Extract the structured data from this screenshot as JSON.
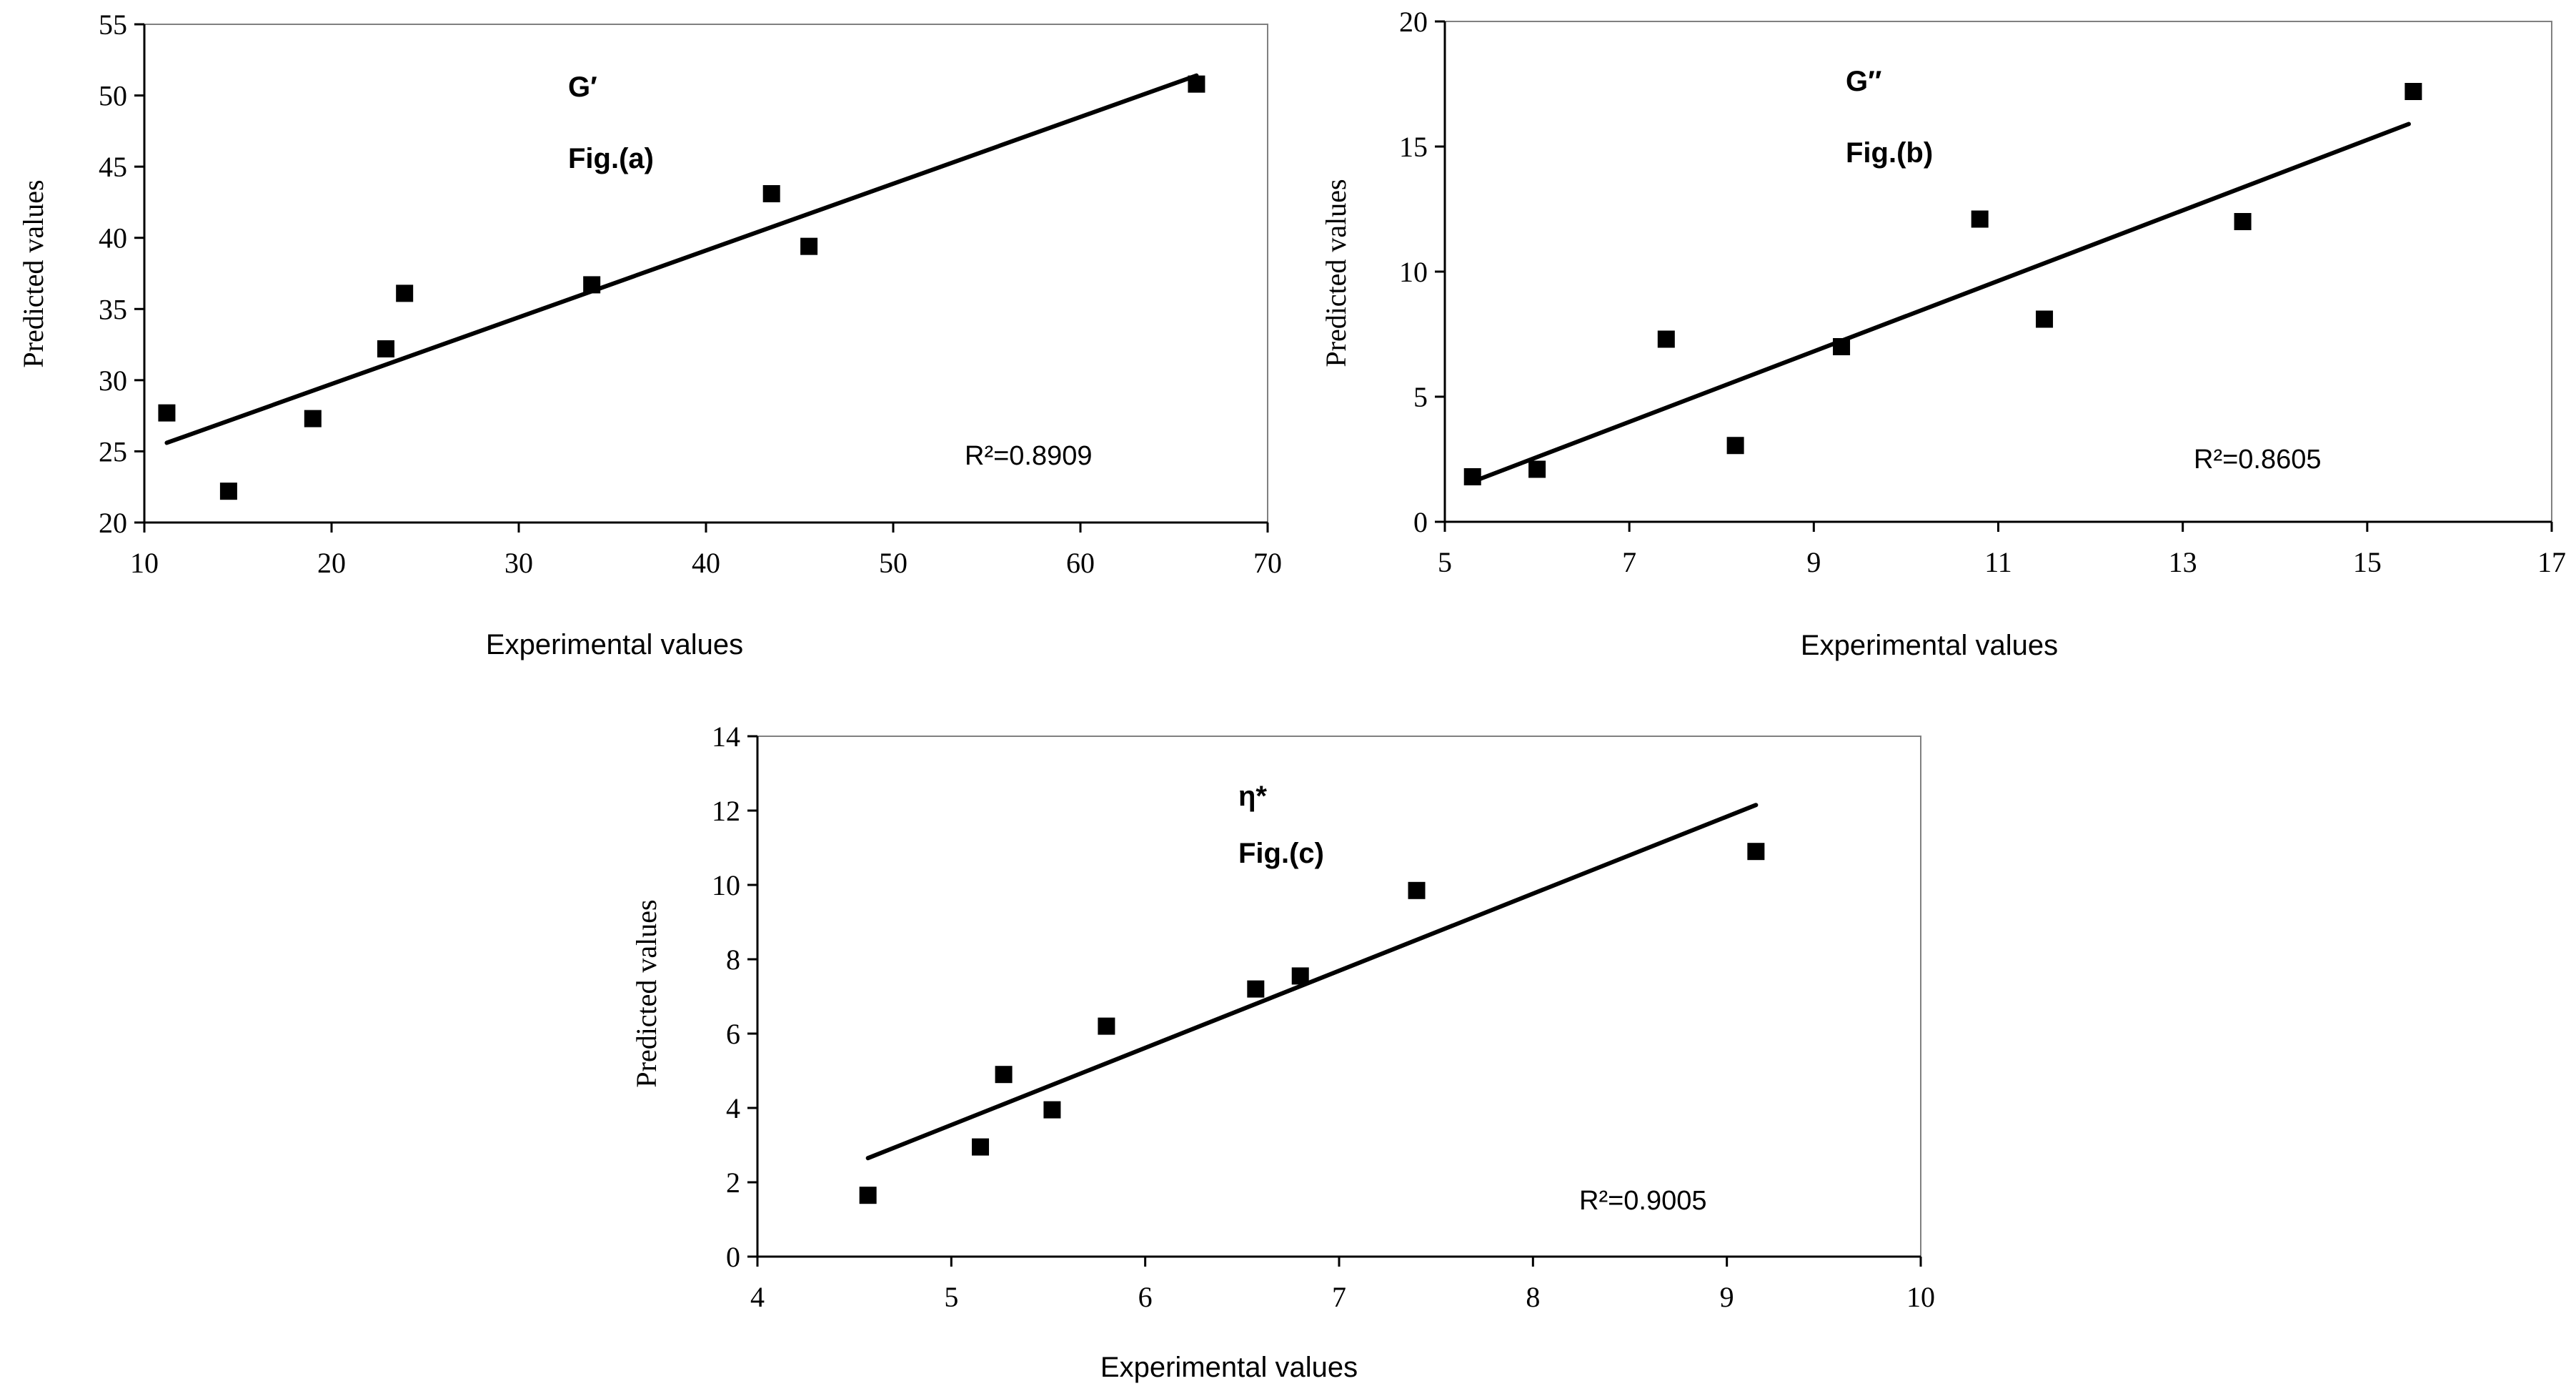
{
  "chart_data": [
    {
      "type": "scatter",
      "panel": "a",
      "xlabel": "Experimental values",
      "ylabel": "Predicted values",
      "xlim": [
        10,
        70
      ],
      "ylim": [
        20,
        55
      ],
      "xticks": [
        10,
        20,
        30,
        40,
        50,
        60,
        70
      ],
      "yticks": [
        20,
        25,
        30,
        35,
        40,
        45,
        50,
        55
      ],
      "annotation_title": "G′",
      "annotation_fig": "Fig.(a)",
      "r2_text": "R²=0.8909",
      "points": [
        {
          "x": 11.2,
          "y": 27.7
        },
        {
          "x": 14.5,
          "y": 22.2
        },
        {
          "x": 19.0,
          "y": 27.3
        },
        {
          "x": 22.9,
          "y": 32.2
        },
        {
          "x": 23.9,
          "y": 36.1
        },
        {
          "x": 33.9,
          "y": 36.7
        },
        {
          "x": 43.5,
          "y": 43.1
        },
        {
          "x": 45.5,
          "y": 39.4
        },
        {
          "x": 66.2,
          "y": 50.8
        }
      ],
      "trendline": [
        [
          11.2,
          25.6
        ],
        [
          66.2,
          51.4
        ]
      ]
    },
    {
      "type": "scatter",
      "panel": "b",
      "xlabel": "Experimental values",
      "ylabel": "Predicted values",
      "xlim": [
        5,
        17
      ],
      "ylim": [
        0,
        20
      ],
      "xticks": [
        5,
        7,
        9,
        11,
        13,
        15,
        17
      ],
      "yticks": [
        0,
        5,
        10,
        15,
        20
      ],
      "annotation_title": "G′′",
      "annotation_fig": "Fig.(b)",
      "r2_text": "R²=0.8605",
      "points": [
        {
          "x": 5.3,
          "y": 1.8
        },
        {
          "x": 6.0,
          "y": 2.1
        },
        {
          "x": 7.4,
          "y": 7.3
        },
        {
          "x": 8.15,
          "y": 3.05
        },
        {
          "x": 9.3,
          "y": 7.0
        },
        {
          "x": 10.8,
          "y": 12.1
        },
        {
          "x": 11.5,
          "y": 8.1
        },
        {
          "x": 13.65,
          "y": 12.0
        },
        {
          "x": 15.5,
          "y": 17.2
        }
      ],
      "trendline": [
        [
          5.3,
          1.6
        ],
        [
          15.45,
          15.9
        ]
      ]
    },
    {
      "type": "scatter",
      "panel": "c",
      "xlabel": "Experimental values",
      "ylabel": "Predicted values",
      "xlim": [
        4,
        10
      ],
      "ylim": [
        0,
        14
      ],
      "xticks": [
        4,
        5,
        6,
        7,
        8,
        9,
        10
      ],
      "yticks": [
        0,
        2,
        4,
        6,
        8,
        10,
        12,
        14
      ],
      "annotation_title": "η*",
      "annotation_fig": "Fig.(c)",
      "r2_text": "R²=0.9005",
      "points": [
        {
          "x": 4.57,
          "y": 1.65
        },
        {
          "x": 5.15,
          "y": 2.95
        },
        {
          "x": 5.27,
          "y": 4.9
        },
        {
          "x": 5.52,
          "y": 3.95
        },
        {
          "x": 5.8,
          "y": 6.2
        },
        {
          "x": 6.57,
          "y": 7.2
        },
        {
          "x": 6.8,
          "y": 7.55
        },
        {
          "x": 7.4,
          "y": 9.85
        },
        {
          "x": 9.15,
          "y": 10.9
        }
      ],
      "trendline": [
        [
          4.57,
          2.65
        ],
        [
          9.15,
          12.15
        ]
      ]
    }
  ]
}
